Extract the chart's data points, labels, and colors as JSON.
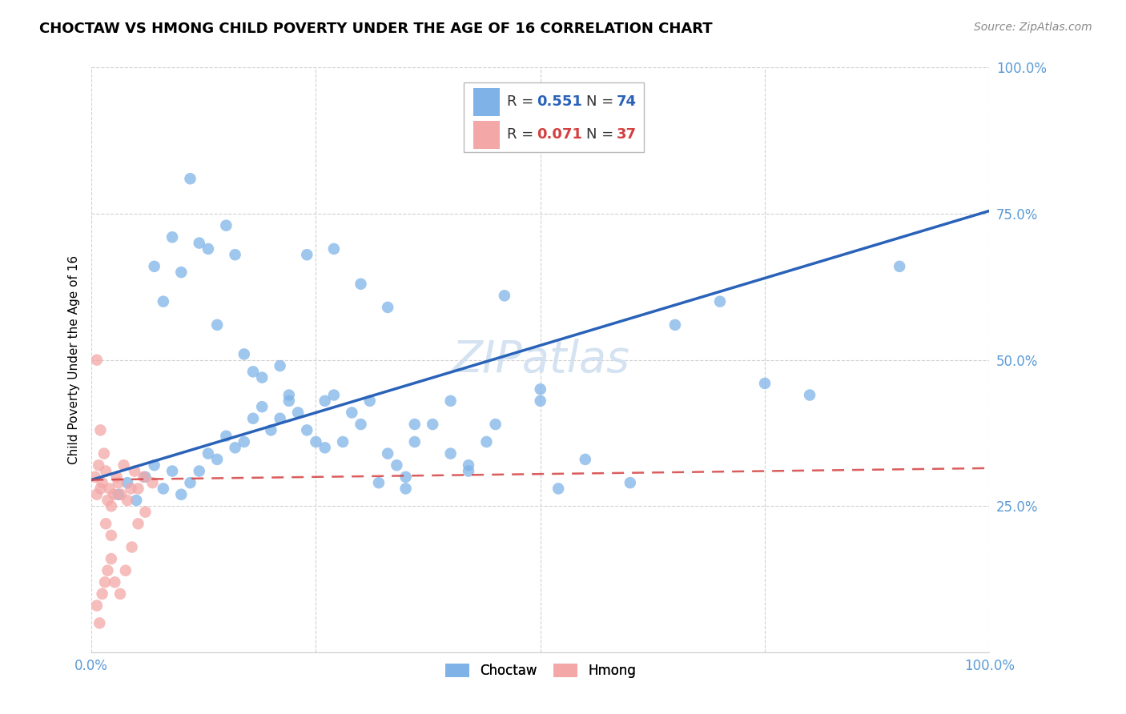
{
  "title": "CHOCTAW VS HMONG CHILD POVERTY UNDER THE AGE OF 16 CORRELATION CHART",
  "source": "Source: ZipAtlas.com",
  "ylabel": "Child Poverty Under the Age of 16",
  "xlim": [
    0.0,
    1.0
  ],
  "ylim": [
    0.0,
    1.0
  ],
  "xticks": [
    0.0,
    0.25,
    0.5,
    0.75,
    1.0
  ],
  "yticks": [
    0.0,
    0.25,
    0.5,
    0.75,
    1.0
  ],
  "choctaw_color": "#7fb3e8",
  "hmong_color": "#f4a7a7",
  "trendline_choctaw_color": "#2962b8",
  "trendline_hmong_color": "#d44040",
  "watermark": "ZIPatlas",
  "choctaw_x": [
    0.03,
    0.04,
    0.05,
    0.06,
    0.07,
    0.08,
    0.09,
    0.1,
    0.11,
    0.12,
    0.13,
    0.14,
    0.15,
    0.16,
    0.17,
    0.18,
    0.19,
    0.2,
    0.21,
    0.22,
    0.23,
    0.24,
    0.25,
    0.26,
    0.27,
    0.28,
    0.29,
    0.3,
    0.31,
    0.32,
    0.33,
    0.34,
    0.35,
    0.36,
    0.38,
    0.4,
    0.42,
    0.44,
    0.46,
    0.5,
    0.52,
    0.55,
    0.6,
    0.65,
    0.7,
    0.75,
    0.8,
    0.9,
    0.07,
    0.09,
    0.11,
    0.13,
    0.15,
    0.17,
    0.19,
    0.21,
    0.24,
    0.27,
    0.3,
    0.33,
    0.36,
    0.4,
    0.45,
    0.5,
    0.08,
    0.1,
    0.12,
    0.14,
    0.16,
    0.18,
    0.22,
    0.26,
    0.35,
    0.42
  ],
  "choctaw_y": [
    0.27,
    0.29,
    0.26,
    0.3,
    0.32,
    0.28,
    0.31,
    0.27,
    0.29,
    0.31,
    0.34,
    0.33,
    0.37,
    0.35,
    0.36,
    0.4,
    0.42,
    0.38,
    0.4,
    0.43,
    0.41,
    0.38,
    0.36,
    0.43,
    0.44,
    0.36,
    0.41,
    0.39,
    0.43,
    0.29,
    0.34,
    0.32,
    0.3,
    0.36,
    0.39,
    0.34,
    0.31,
    0.36,
    0.61,
    0.43,
    0.28,
    0.33,
    0.29,
    0.56,
    0.6,
    0.46,
    0.44,
    0.66,
    0.66,
    0.71,
    0.81,
    0.69,
    0.73,
    0.51,
    0.47,
    0.49,
    0.68,
    0.69,
    0.63,
    0.59,
    0.39,
    0.43,
    0.39,
    0.45,
    0.6,
    0.65,
    0.7,
    0.56,
    0.68,
    0.48,
    0.44,
    0.35,
    0.28,
    0.32
  ],
  "hmong_x": [
    0.004,
    0.006,
    0.008,
    0.01,
    0.012,
    0.014,
    0.016,
    0.018,
    0.02,
    0.022,
    0.025,
    0.028,
    0.03,
    0.033,
    0.036,
    0.04,
    0.044,
    0.048,
    0.052,
    0.058,
    0.006,
    0.009,
    0.012,
    0.015,
    0.018,
    0.022,
    0.026,
    0.032,
    0.038,
    0.045,
    0.052,
    0.06,
    0.068,
    0.006,
    0.01,
    0.016,
    0.022
  ],
  "hmong_y": [
    0.3,
    0.27,
    0.32,
    0.28,
    0.29,
    0.34,
    0.31,
    0.26,
    0.28,
    0.25,
    0.27,
    0.3,
    0.29,
    0.27,
    0.32,
    0.26,
    0.28,
    0.31,
    0.28,
    0.3,
    0.08,
    0.05,
    0.1,
    0.12,
    0.14,
    0.16,
    0.12,
    0.1,
    0.14,
    0.18,
    0.22,
    0.24,
    0.29,
    0.5,
    0.38,
    0.22,
    0.2
  ],
  "background_color": "#ffffff",
  "grid_color": "#cccccc",
  "tick_color": "#5b9bd5",
  "title_fontsize": 13,
  "axis_label_fontsize": 11,
  "tick_fontsize": 12,
  "watermark_color": "#d0dff0",
  "source_fontsize": 10,
  "choctaw_trendline_x0": 0.0,
  "choctaw_trendline_y0": 0.295,
  "choctaw_trendline_x1": 1.0,
  "choctaw_trendline_y1": 0.755,
  "hmong_trendline_x0": 0.0,
  "hmong_trendline_y0": 0.295,
  "hmong_trendline_x1": 1.0,
  "hmong_trendline_y1": 0.315
}
